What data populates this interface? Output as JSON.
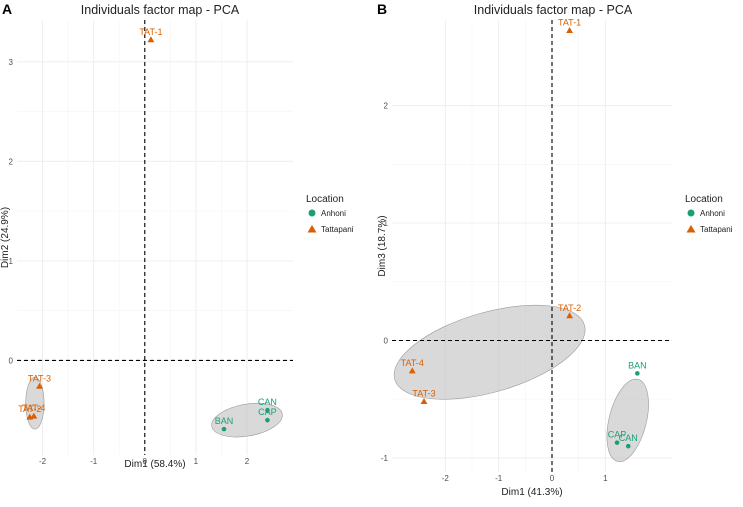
{
  "colors": {
    "Anhoni": "#1b9e77",
    "Tattapani": "#d95f02",
    "ellipse": "#bfbfbf",
    "grid": "#ececec"
  },
  "chart_data": [
    {
      "type": "scatter",
      "panel": "A",
      "title": "Individuals factor map - PCA",
      "xlabel": "Dim1 (58.4%)",
      "ylabel": "Dim2 (24.9%)",
      "xlim": [
        -2.5,
        2.9
      ],
      "ylim": [
        -0.95,
        3.42
      ],
      "xticks": [
        -2,
        -1,
        0,
        1,
        2
      ],
      "yticks": [
        0,
        1,
        2,
        3
      ],
      "xtick_labels": [
        "-2",
        "-1",
        "0",
        "1",
        "2"
      ],
      "ytick_labels": [
        "0",
        "1",
        "2",
        "3"
      ],
      "legend": {
        "title": "Location",
        "entries": [
          "Anhoni",
          "Tattapani"
        ],
        "position": "right"
      },
      "points": [
        {
          "label": "TAT-1",
          "x": 0.12,
          "y": 3.22,
          "group": "Tattapani"
        },
        {
          "label": "TAT-3",
          "x": -2.06,
          "y": -0.26,
          "group": "Tattapani"
        },
        {
          "label": "TAT-2",
          "x": -2.25,
          "y": -0.57,
          "group": "Tattapani"
        },
        {
          "label": "TAT-4",
          "x": -2.17,
          "y": -0.56,
          "group": "Tattapani"
        },
        {
          "label": "BAN",
          "x": 1.55,
          "y": -0.69,
          "group": "Anhoni"
        },
        {
          "label": "CAN",
          "x": 2.4,
          "y": -0.5,
          "group": "Anhoni"
        },
        {
          "label": "CAP",
          "x": 2.4,
          "y": -0.6,
          "group": "Anhoni"
        }
      ],
      "ellipses": [
        {
          "group": "Tattapani",
          "cx": -2.15,
          "cy": -0.43,
          "rx": 0.18,
          "ry": 0.26,
          "angle": 0
        },
        {
          "group": "Anhoni",
          "cx": 2.0,
          "cy": -0.6,
          "rx": 0.7,
          "ry": 0.16,
          "angle": -10
        }
      ]
    },
    {
      "type": "scatter",
      "panel": "B",
      "title": "Individuals factor map - PCA",
      "xlabel": "Dim1 (41.3%)",
      "ylabel": "Dim3 (18.7%)",
      "xlim": [
        -3.0,
        2.25
      ],
      "ylim": [
        -1.12,
        2.73
      ],
      "xticks": [
        -2,
        -1,
        0,
        1
      ],
      "yticks": [
        -1,
        0,
        1,
        2
      ],
      "xtick_labels": [
        "-2",
        "-1",
        "0",
        "1"
      ],
      "ytick_labels": [
        "-1",
        "0",
        "1",
        "2"
      ],
      "legend": {
        "title": "Location",
        "entries": [
          "Anhoni",
          "Tattapani"
        ],
        "position": "right"
      },
      "points": [
        {
          "label": "TAT-1",
          "x": 0.33,
          "y": 2.64,
          "group": "Tattapani"
        },
        {
          "label": "TAT-2",
          "x": 0.33,
          "y": 0.21,
          "group": "Tattapani"
        },
        {
          "label": "TAT-4",
          "x": -2.62,
          "y": -0.26,
          "group": "Tattapani"
        },
        {
          "label": "TAT-3",
          "x": -2.4,
          "y": -0.52,
          "group": "Tattapani"
        },
        {
          "label": "BAN",
          "x": 1.6,
          "y": -0.28,
          "group": "Anhoni"
        },
        {
          "label": "CAP",
          "x": 1.22,
          "y": -0.87,
          "group": "Anhoni"
        },
        {
          "label": "CAN",
          "x": 1.43,
          "y": -0.9,
          "group": "Anhoni"
        }
      ],
      "ellipses": [
        {
          "group": "Tattapani",
          "cx": -1.17,
          "cy": -0.1,
          "rx": 1.85,
          "ry": 0.34,
          "angle": -16
        },
        {
          "group": "Anhoni",
          "cx": 1.42,
          "cy": -0.68,
          "rx": 0.35,
          "ry": 0.36,
          "angle": 14
        }
      ]
    }
  ]
}
